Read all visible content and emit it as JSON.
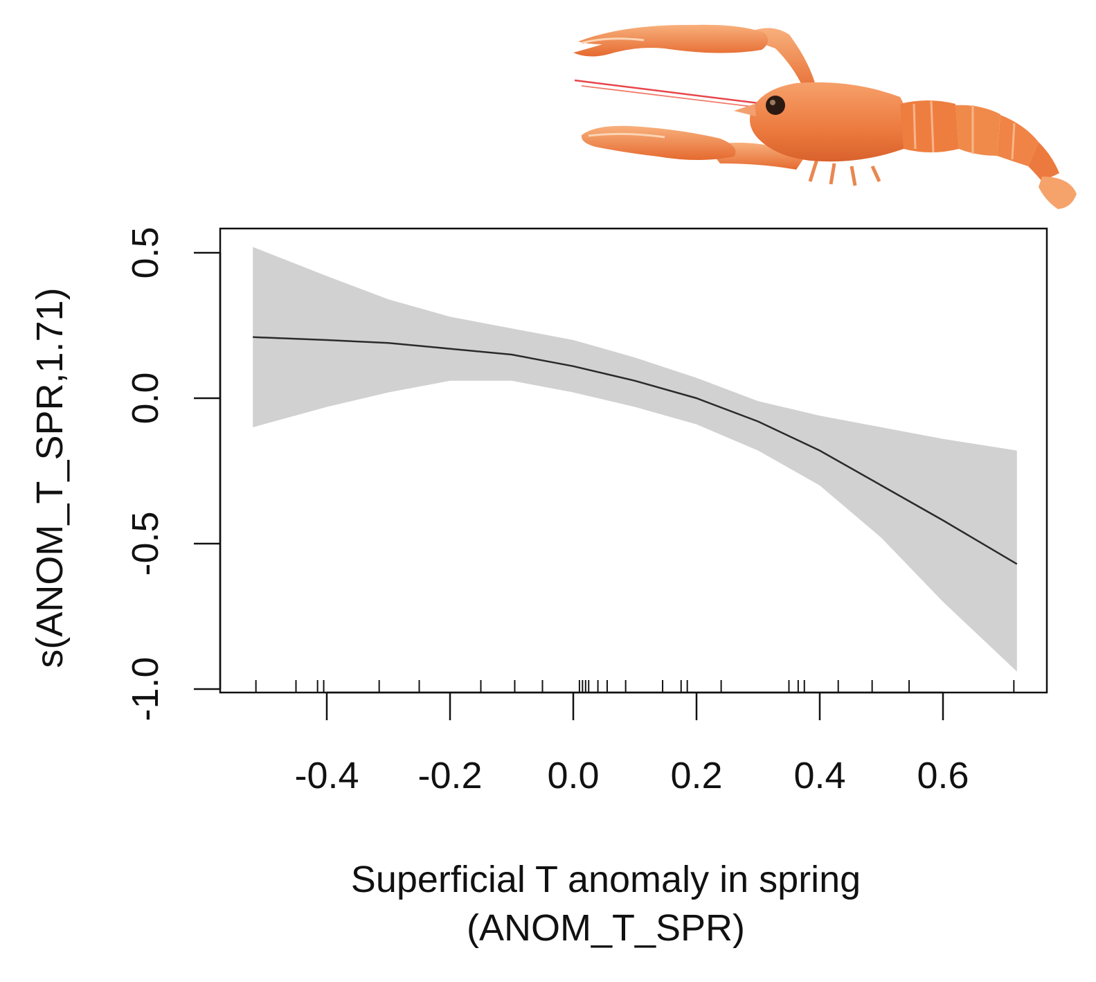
{
  "chart_data": {
    "type": "line",
    "xlabel": [
      "Superficial T anomaly in spring",
      "(ANOM_T_SPR)"
    ],
    "ylabel": "s(ANOM_T_SPR,1.71)",
    "xlim": [
      -0.52,
      0.72
    ],
    "ylim": [
      -1.0,
      0.55
    ],
    "x_ticks": [
      -0.4,
      -0.2,
      0.0,
      0.2,
      0.4,
      0.6
    ],
    "x_tick_labels": [
      "-0.4",
      "-0.2",
      "0.0",
      "0.2",
      "0.4",
      "0.6"
    ],
    "y_ticks": [
      -1.0,
      -0.5,
      0.0,
      0.5
    ],
    "y_tick_labels": [
      "-1.0",
      "-0.5",
      "0.0",
      "0.5"
    ],
    "grid": false,
    "series": [
      {
        "kind": "smooth",
        "x": [
          -0.52,
          -0.4,
          -0.3,
          -0.2,
          -0.1,
          0.0,
          0.1,
          0.2,
          0.3,
          0.4,
          0.5,
          0.6,
          0.72
        ],
        "y": [
          0.21,
          0.2,
          0.19,
          0.17,
          0.15,
          0.11,
          0.06,
          0.0,
          -0.08,
          -0.18,
          -0.3,
          -0.42,
          -0.57
        ]
      },
      {
        "kind": "confidence-band",
        "x": [
          -0.52,
          -0.4,
          -0.3,
          -0.2,
          -0.1,
          0.0,
          0.1,
          0.2,
          0.3,
          0.4,
          0.5,
          0.6,
          0.72
        ],
        "upper": [
          0.52,
          0.42,
          0.34,
          0.28,
          0.24,
          0.2,
          0.14,
          0.07,
          -0.01,
          -0.06,
          -0.1,
          -0.14,
          -0.18
        ],
        "lower": [
          -0.1,
          -0.03,
          0.02,
          0.06,
          0.06,
          0.02,
          -0.03,
          -0.09,
          -0.18,
          -0.3,
          -0.48,
          -0.7,
          -0.94
        ]
      }
    ],
    "rug": [
      -0.515,
      -0.45,
      -0.415,
      -0.405,
      -0.315,
      -0.25,
      -0.15,
      -0.095,
      -0.05,
      0.01,
      0.015,
      0.02,
      0.025,
      0.04,
      0.055,
      0.085,
      0.145,
      0.175,
      0.185,
      0.24,
      0.35,
      0.365,
      0.375,
      0.43,
      0.485,
      0.545,
      0.715
    ],
    "colors": {
      "band": "#d1d1d1",
      "line": "#2a2a2a",
      "axis": "#111111"
    },
    "decoration": "langoustine-image"
  }
}
